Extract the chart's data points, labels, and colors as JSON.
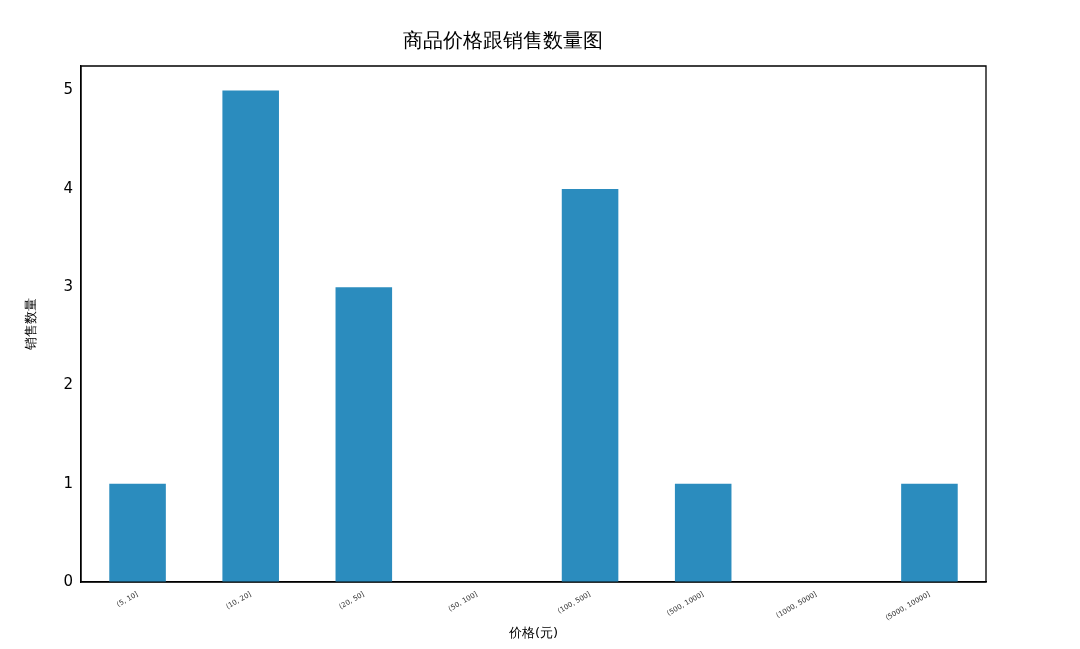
{
  "chart_data": {
    "type": "bar",
    "title": "商品价格跟销售数量图",
    "xlabel": "价格(元)",
    "ylabel": "销售数量",
    "categories": [
      "(5, 10]",
      "(10, 20]",
      "(20, 50]",
      "(50, 100]",
      "(100, 500]",
      "(500, 1000]",
      "(1000, 5000]",
      "(5000, 10000]"
    ],
    "values": [
      1,
      5,
      3,
      0,
      4,
      1,
      0,
      1
    ],
    "color": "#2b8cbe",
    "ylim": [
      0,
      5.25
    ],
    "yticks": [
      0,
      1,
      2,
      3,
      4,
      5
    ],
    "grid": false,
    "legend": false
  }
}
